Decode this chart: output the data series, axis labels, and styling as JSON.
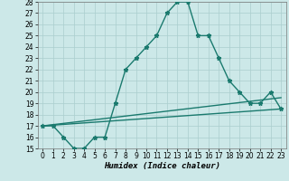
{
  "xlabel": "Humidex (Indice chaleur)",
  "bg_color": "#cce8e8",
  "line_color": "#1a7a6e",
  "grid_color": "#aacece",
  "xlim": [
    -0.5,
    23.5
  ],
  "ylim": [
    15,
    28
  ],
  "xticks": [
    0,
    1,
    2,
    3,
    4,
    5,
    6,
    7,
    8,
    9,
    10,
    11,
    12,
    13,
    14,
    15,
    16,
    17,
    18,
    19,
    20,
    21,
    22,
    23
  ],
  "yticks": [
    15,
    16,
    17,
    18,
    19,
    20,
    21,
    22,
    23,
    24,
    25,
    26,
    27,
    28
  ],
  "line1_x": [
    0,
    1,
    2,
    3,
    4,
    5,
    6,
    7,
    8,
    9,
    10,
    11,
    12,
    13,
    14,
    15,
    16,
    17,
    18,
    19,
    20,
    21,
    22,
    23
  ],
  "line1_y": [
    17,
    17,
    16,
    15,
    15,
    16,
    16,
    19,
    22,
    23,
    24,
    25,
    27,
    28,
    28,
    25,
    25,
    23,
    21,
    20,
    19,
    19,
    20,
    18.5
  ],
  "line2_x": [
    0,
    23
  ],
  "line2_y": [
    17,
    19.5
  ],
  "line3_x": [
    0,
    23
  ],
  "line3_y": [
    17,
    18.5
  ],
  "markersize": 2.5,
  "linewidth": 1.0,
  "tick_fontsize": 5.5,
  "xlabel_fontsize": 6.5
}
